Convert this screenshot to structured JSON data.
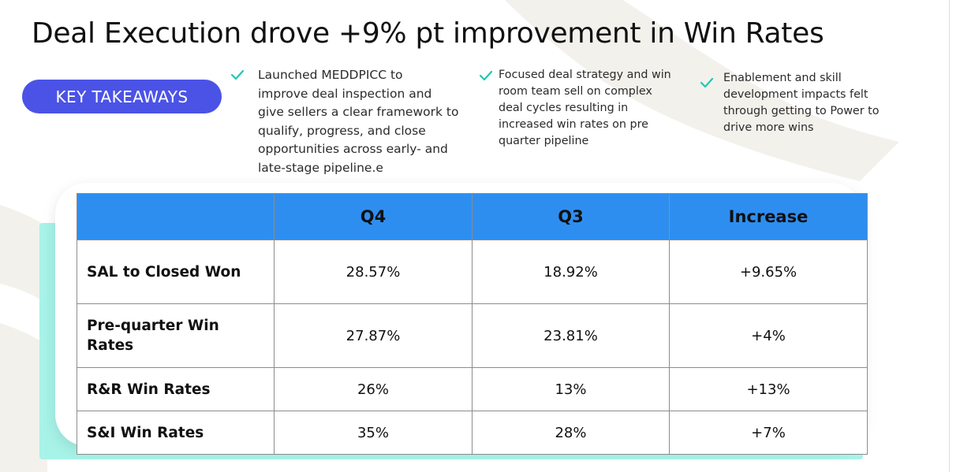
{
  "title": "Deal Execution drove +9% pt improvement in Win Rates",
  "badge": "KEY TAKEAWAYS",
  "takeaways": [
    {
      "lines": [
        "Launched MEDDPICC to",
        "improve deal inspection and",
        "give sellers a clear framework to",
        "qualify, progress, and close",
        "opportunities across early- and",
        "late-stage pipeline.e"
      ]
    },
    {
      "lines": [
        "Focused deal strategy  and win",
        "room team sell on complex",
        "deal cycles resulting in",
        "increased win rates on pre",
        "quarter pipeline"
      ]
    },
    {
      "lines": [
        "Enablement and skill",
        "development impacts felt",
        "through getting to Power to",
        "drive more wins"
      ]
    }
  ],
  "table": {
    "columns": [
      "",
      "Q4",
      "Q3",
      "Increase"
    ],
    "rows": [
      {
        "label": [
          "SAL to Closed Won"
        ],
        "q4": "28.57%",
        "q3": "18.92%",
        "increase": "+9.65%"
      },
      {
        "label": [
          "Pre-quarter Win",
          "Rates"
        ],
        "q4": "27.87%",
        "q3": "23.81%",
        "increase": "+4%"
      },
      {
        "label": [
          "R&R Win Rates"
        ],
        "q4": "26%",
        "q3": "13%",
        "increase": "+13%"
      },
      {
        "label": [
          "S&I Win Rates"
        ],
        "q4": "35%",
        "q3": "28%",
        "increase": "+7%"
      }
    ]
  },
  "colors": {
    "badge": "#4b53e6",
    "header": "#2e8ef0",
    "check": "#1fc7b4",
    "teal_block": "#a7f3e8",
    "background_shape": "#f3f1eb"
  },
  "icons": [
    "checkmark-icon"
  ]
}
